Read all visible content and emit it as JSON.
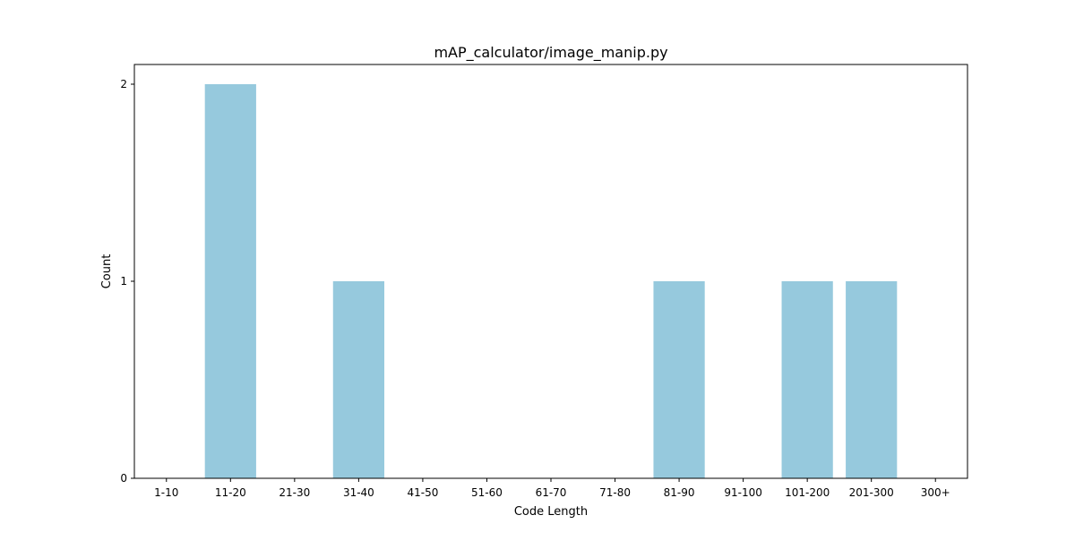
{
  "chart_data": {
    "type": "bar",
    "title": "mAP_calculator/image_manip.py",
    "xlabel": "Code Length",
    "ylabel": "Count",
    "categories": [
      "1-10",
      "11-20",
      "21-30",
      "31-40",
      "41-50",
      "51-60",
      "61-70",
      "71-80",
      "81-90",
      "91-100",
      "101-200",
      "201-300",
      "300+"
    ],
    "values": [
      0,
      2,
      0,
      1,
      0,
      0,
      0,
      0,
      1,
      0,
      1,
      1,
      0
    ],
    "yticks": [
      0,
      1,
      2
    ],
    "ylim": [
      0,
      2.1
    ],
    "grid": false,
    "legend": false,
    "bar_color": "#96c9dd"
  }
}
